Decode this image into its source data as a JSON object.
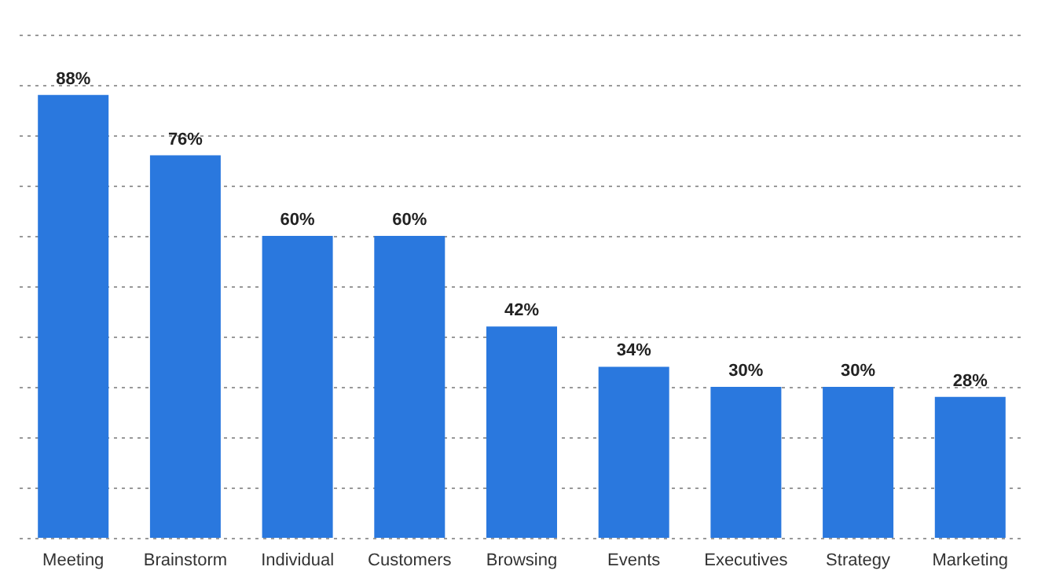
{
  "chart_data": {
    "type": "bar",
    "categories": [
      "Meeting",
      "Brainstorm",
      "Individual",
      "Customers",
      "Browsing",
      "Events",
      "Executives",
      "Strategy",
      "Marketing"
    ],
    "values": [
      88,
      76,
      60,
      60,
      42,
      34,
      30,
      30,
      28
    ],
    "value_labels": [
      "88%",
      "76%",
      "60%",
      "60%",
      "42%",
      "34%",
      "30%",
      "30%",
      "28%"
    ],
    "color": "#2a78de",
    "ylim": [
      0,
      100
    ],
    "yticks": [
      0,
      10,
      20,
      30,
      40,
      50,
      60,
      70,
      80,
      90,
      100
    ],
    "grid": "y",
    "tick_labels": "x"
  }
}
